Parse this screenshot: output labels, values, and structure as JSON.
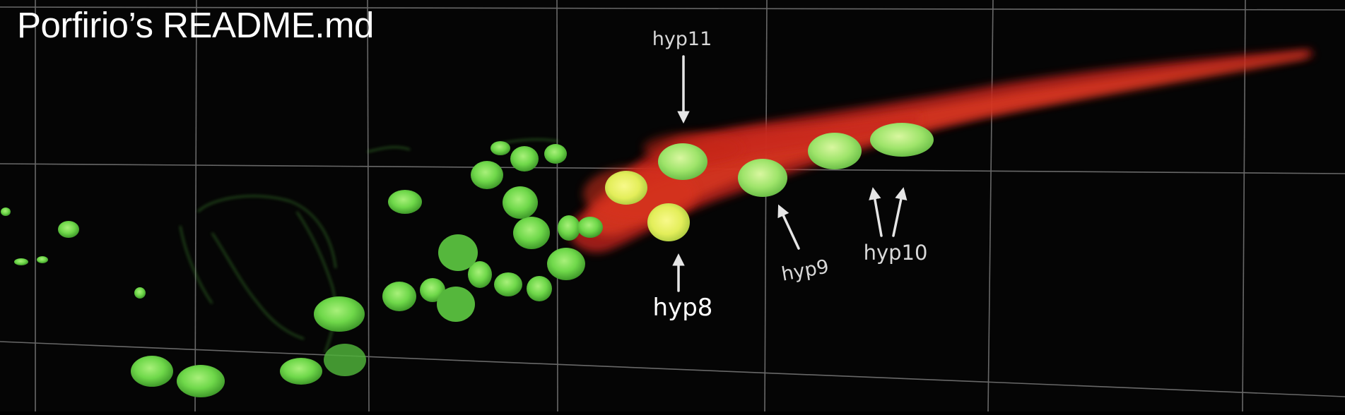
{
  "title": "Porfirio’s README.md",
  "labels": {
    "hyp11": "hyp11",
    "hyp8": "hyp8",
    "hyp9": "hyp9",
    "hyp10": "hyp10"
  },
  "colors": {
    "background": "#050505",
    "grid": "#8a8a8a",
    "tissue_red": "#d42a1c",
    "nucleus_green": "#6fd84a",
    "overlap_yellow": "#e8f05a",
    "annotation": "#e6e6e6",
    "title": "#ffffff"
  }
}
